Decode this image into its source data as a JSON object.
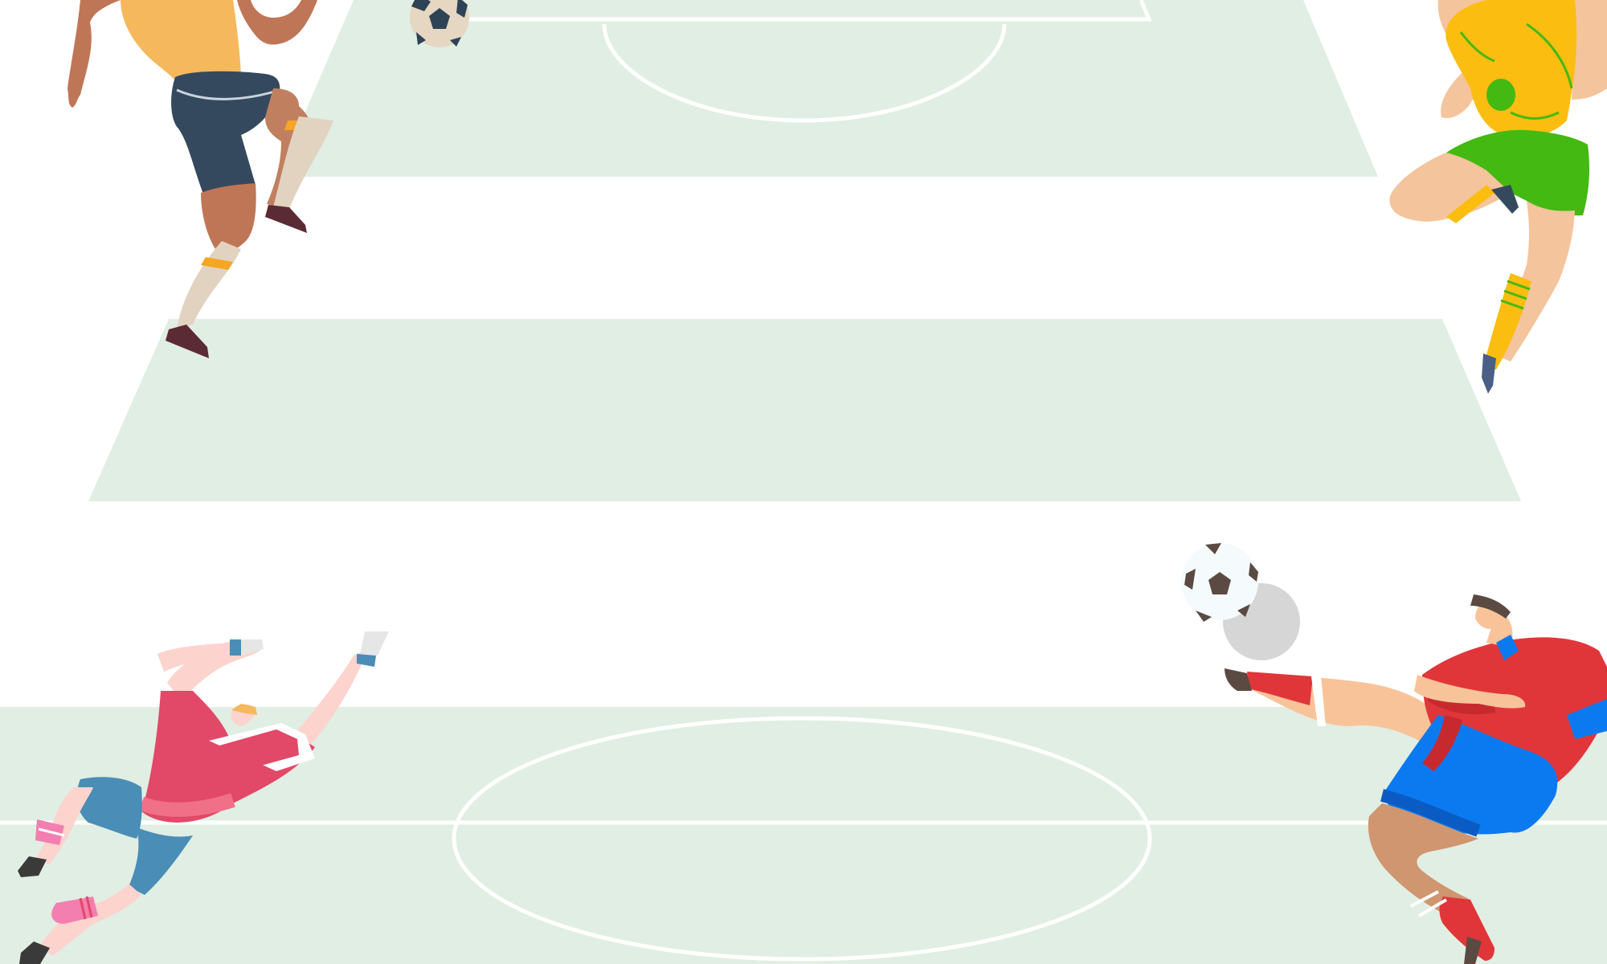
{
  "scene": {
    "subject": "football-players-illustration",
    "colors": {
      "background": "#ffffff",
      "pitch": "#e1eee3",
      "pitch_lines": "#ffffff",
      "ball_dark": "#2f4356",
      "ball_brown": "#5b4a42",
      "player_top_left_shirt": "#f6b85d",
      "player_top_left_shorts": "#34495d",
      "player_top_right_shirt": "#fbbd10",
      "player_top_right_shorts": "#44b912",
      "goalkeeper_shirt": "#e24867",
      "goalkeeper_shorts": "#4a8db7",
      "striker_shirt": "#e0363a",
      "striker_shorts": "#0b7af1"
    }
  }
}
